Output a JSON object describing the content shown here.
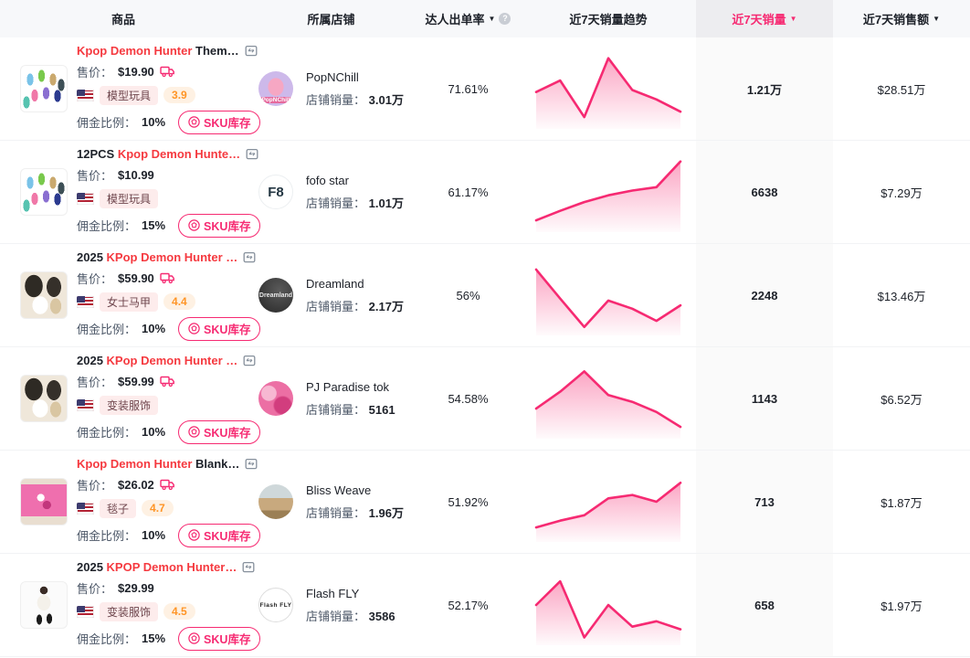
{
  "colors": {
    "accent_pink": "#f62a72",
    "title_red": "#f5393f",
    "rating_orange": "#ff9526",
    "chart_line": "#f62a72",
    "active_header_bg": "#ededf0"
  },
  "labels": {
    "price": "售价：",
    "commission": "佣金比例：",
    "shop_sales": "店铺销量：",
    "sku_button": "SKU库存",
    "sort_caret": "▼",
    "info_badge": "?"
  },
  "header": {
    "columns": [
      {
        "key": "product",
        "label": "商品",
        "sortable": false,
        "info": false,
        "active": false
      },
      {
        "key": "shop",
        "label": "所属店铺",
        "sortable": false,
        "info": false,
        "active": false
      },
      {
        "key": "rate",
        "label": "达人出单率",
        "sortable": true,
        "info": true,
        "active": false
      },
      {
        "key": "trend",
        "label": "近7天销量趋势",
        "sortable": false,
        "info": false,
        "active": false
      },
      {
        "key": "sales",
        "label": "近7天销量",
        "sortable": true,
        "info": false,
        "active": true
      },
      {
        "key": "amount",
        "label": "近7天销售额",
        "sortable": true,
        "info": false,
        "active": false
      }
    ]
  },
  "rows": [
    {
      "title_prefix": "",
      "title_red": "Kpop Demon Hunter",
      "title_suffix": " Them…",
      "price": "$19.90",
      "free_shipping": true,
      "country": "US",
      "tag": "模型玩具",
      "rating": "3.9",
      "commission": "10%",
      "thumb": "figures",
      "shop": {
        "name": "PopNChill",
        "sales": "3.01万",
        "avatar": "popnchill",
        "avatar_text": "PopNChill"
      },
      "rate": "71.61%",
      "sales": "1.21万",
      "amount": "$28.51万",
      "trend": [
        0.45,
        0.62,
        0.08,
        0.95,
        0.48,
        0.34,
        0.16
      ]
    },
    {
      "title_prefix": "12PCS ",
      "title_red": "Kpop Demon Hunte…",
      "title_suffix": "",
      "price": "$10.99",
      "free_shipping": false,
      "country": "US",
      "tag": "模型玩具",
      "rating": "",
      "commission": "15%",
      "thumb": "figures",
      "shop": {
        "name": "fofo star",
        "sales": "1.01万",
        "avatar": "fofo",
        "avatar_text": "F8"
      },
      "rate": "61.17%",
      "sales": "6638",
      "amount": "$7.29万",
      "trend": [
        0.08,
        0.22,
        0.35,
        0.45,
        0.52,
        0.57,
        0.95
      ]
    },
    {
      "title_prefix": "2025 ",
      "title_red": "KPop Demon Hunter …",
      "title_suffix": "",
      "price": "$59.90",
      "free_shipping": true,
      "country": "US",
      "tag": "女士马甲",
      "rating": "4.4",
      "commission": "10%",
      "thumb": "costume",
      "shop": {
        "name": "Dreamland",
        "sales": "2.17万",
        "avatar": "dreamland",
        "avatar_text": "Dreamland"
      },
      "rate": "56%",
      "sales": "2248",
      "amount": "$13.46万",
      "trend": [
        0.88,
        0.45,
        0.03,
        0.42,
        0.3,
        0.12,
        0.35
      ]
    },
    {
      "title_prefix": "2025 ",
      "title_red": "KPop Demon Hunter …",
      "title_suffix": "",
      "price": "$59.99",
      "free_shipping": true,
      "country": "US",
      "tag": "变装服饰",
      "rating": "",
      "commission": "10%",
      "thumb": "costume",
      "shop": {
        "name": "PJ Paradise tok",
        "sales": "5161",
        "avatar": "pj",
        "avatar_text": ""
      },
      "rate": "54.58%",
      "sales": "1143",
      "amount": "$6.52万",
      "trend": [
        0.35,
        0.6,
        0.9,
        0.55,
        0.45,
        0.3,
        0.08
      ]
    },
    {
      "title_prefix": "",
      "title_red": "Kpop Demon Hunter",
      "title_suffix": " Blank…",
      "price": "$26.02",
      "free_shipping": true,
      "country": "US",
      "tag": "毯子",
      "rating": "4.7",
      "commission": "10%",
      "thumb": "blanket",
      "shop": {
        "name": "Bliss Weave",
        "sales": "1.96万",
        "avatar": "bliss",
        "avatar_text": ""
      },
      "rate": "51.92%",
      "sales": "713",
      "amount": "$1.87万",
      "trend": [
        0.12,
        0.22,
        0.3,
        0.55,
        0.6,
        0.5,
        0.78
      ]
    },
    {
      "title_prefix": "2025 ",
      "title_red": "KPOP Demon Hunter…",
      "title_suffix": "",
      "price": "$29.99",
      "free_shipping": false,
      "country": "US",
      "tag": "变装服饰",
      "rating": "4.5",
      "commission": "15%",
      "thumb": "dancer",
      "shop": {
        "name": "Flash FLY",
        "sales": "3586",
        "avatar": "flash",
        "avatar_text": "Flash FLY"
      },
      "rate": "52.17%",
      "sales": "658",
      "amount": "$1.97万",
      "trend": [
        0.5,
        0.85,
        0.02,
        0.5,
        0.18,
        0.26,
        0.14
      ]
    }
  ]
}
